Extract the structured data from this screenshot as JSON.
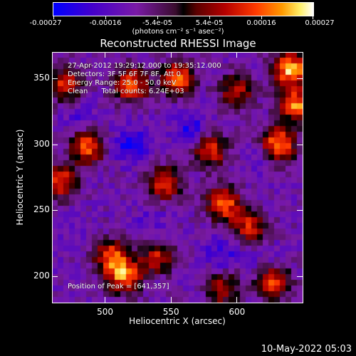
{
  "colorbar": {
    "tick_labels": [
      "-0.00027",
      "-0.00016",
      "-5.4e-05",
      "5.4e-05",
      "0.00016",
      "0.00027"
    ],
    "unit_label": "(photons cm⁻² s⁻¹ asec⁻²)",
    "colors": [
      "#0000ff",
      "#7a1aa6",
      "#000000",
      "#b40000",
      "#ff9a00",
      "#ffffff"
    ]
  },
  "title": "Reconstructed RHESSI Image",
  "info": {
    "time_range": "27-Apr-2012 19:29:12.000 to 19:35:12.000",
    "detectors": "Detectors: 3F 5F 6F 7F 8F, Att 0",
    "energy_range": "Energy Range: 25.0 - 50.0 keV",
    "clean_counts": "Clean      Total counts: 6.24E+03",
    "peak_position": "Position of Peak = [641,357]"
  },
  "footer_date": "10-May-2022 05:03",
  "chart_data": {
    "type": "heatmap",
    "title": "Reconstructed RHESSI Image",
    "xlabel": "Heliocentric X (arcsec)",
    "ylabel": "Heliocentric Y (arcsec)",
    "xlim": [
      460,
      650
    ],
    "ylim": [
      180,
      370
    ],
    "x_ticks": [
      500,
      550,
      600
    ],
    "y_ticks": [
      200,
      250,
      300,
      350
    ],
    "color_range": [
      -0.00027,
      0.00027
    ],
    "peak": [
      641,
      357
    ],
    "hotspots": [
      {
        "x": 641,
        "y": 357,
        "value": 0.00027
      },
      {
        "x": 632,
        "y": 300,
        "value": 0.00024
      },
      {
        "x": 645,
        "y": 330,
        "value": 0.00022
      },
      {
        "x": 555,
        "y": 350,
        "value": 0.00021
      },
      {
        "x": 520,
        "y": 345,
        "value": 0.0002
      },
      {
        "x": 487,
        "y": 298,
        "value": 0.00019
      },
      {
        "x": 466,
        "y": 272,
        "value": 0.00017
      },
      {
        "x": 515,
        "y": 200,
        "value": 0.00022
      },
      {
        "x": 505,
        "y": 215,
        "value": 0.00017
      },
      {
        "x": 590,
        "y": 255,
        "value": 0.00021
      },
      {
        "x": 580,
        "y": 295,
        "value": 0.00016
      },
      {
        "x": 545,
        "y": 270,
        "value": 0.00014
      },
      {
        "x": 470,
        "y": 345,
        "value": 0.00015
      },
      {
        "x": 628,
        "y": 195,
        "value": 0.00016
      },
      {
        "x": 610,
        "y": 237,
        "value": 0.00014
      },
      {
        "x": 540,
        "y": 215,
        "value": 0.00012
      },
      {
        "x": 600,
        "y": 340,
        "value": 0.00011
      },
      {
        "x": 590,
        "y": 190,
        "value": 0.0001
      }
    ],
    "coldspots": [
      {
        "x": 520,
        "y": 300,
        "value": -0.00026
      },
      {
        "x": 565,
        "y": 312,
        "value": -0.00024
      },
      {
        "x": 590,
        "y": 218,
        "value": -0.00022
      },
      {
        "x": 480,
        "y": 320,
        "value": -0.00018
      },
      {
        "x": 615,
        "y": 288,
        "value": -0.00015
      },
      {
        "x": 535,
        "y": 240,
        "value": -0.00017
      },
      {
        "x": 620,
        "y": 215,
        "value": -0.00015
      },
      {
        "x": 470,
        "y": 230,
        "value": -0.00014
      }
    ]
  }
}
